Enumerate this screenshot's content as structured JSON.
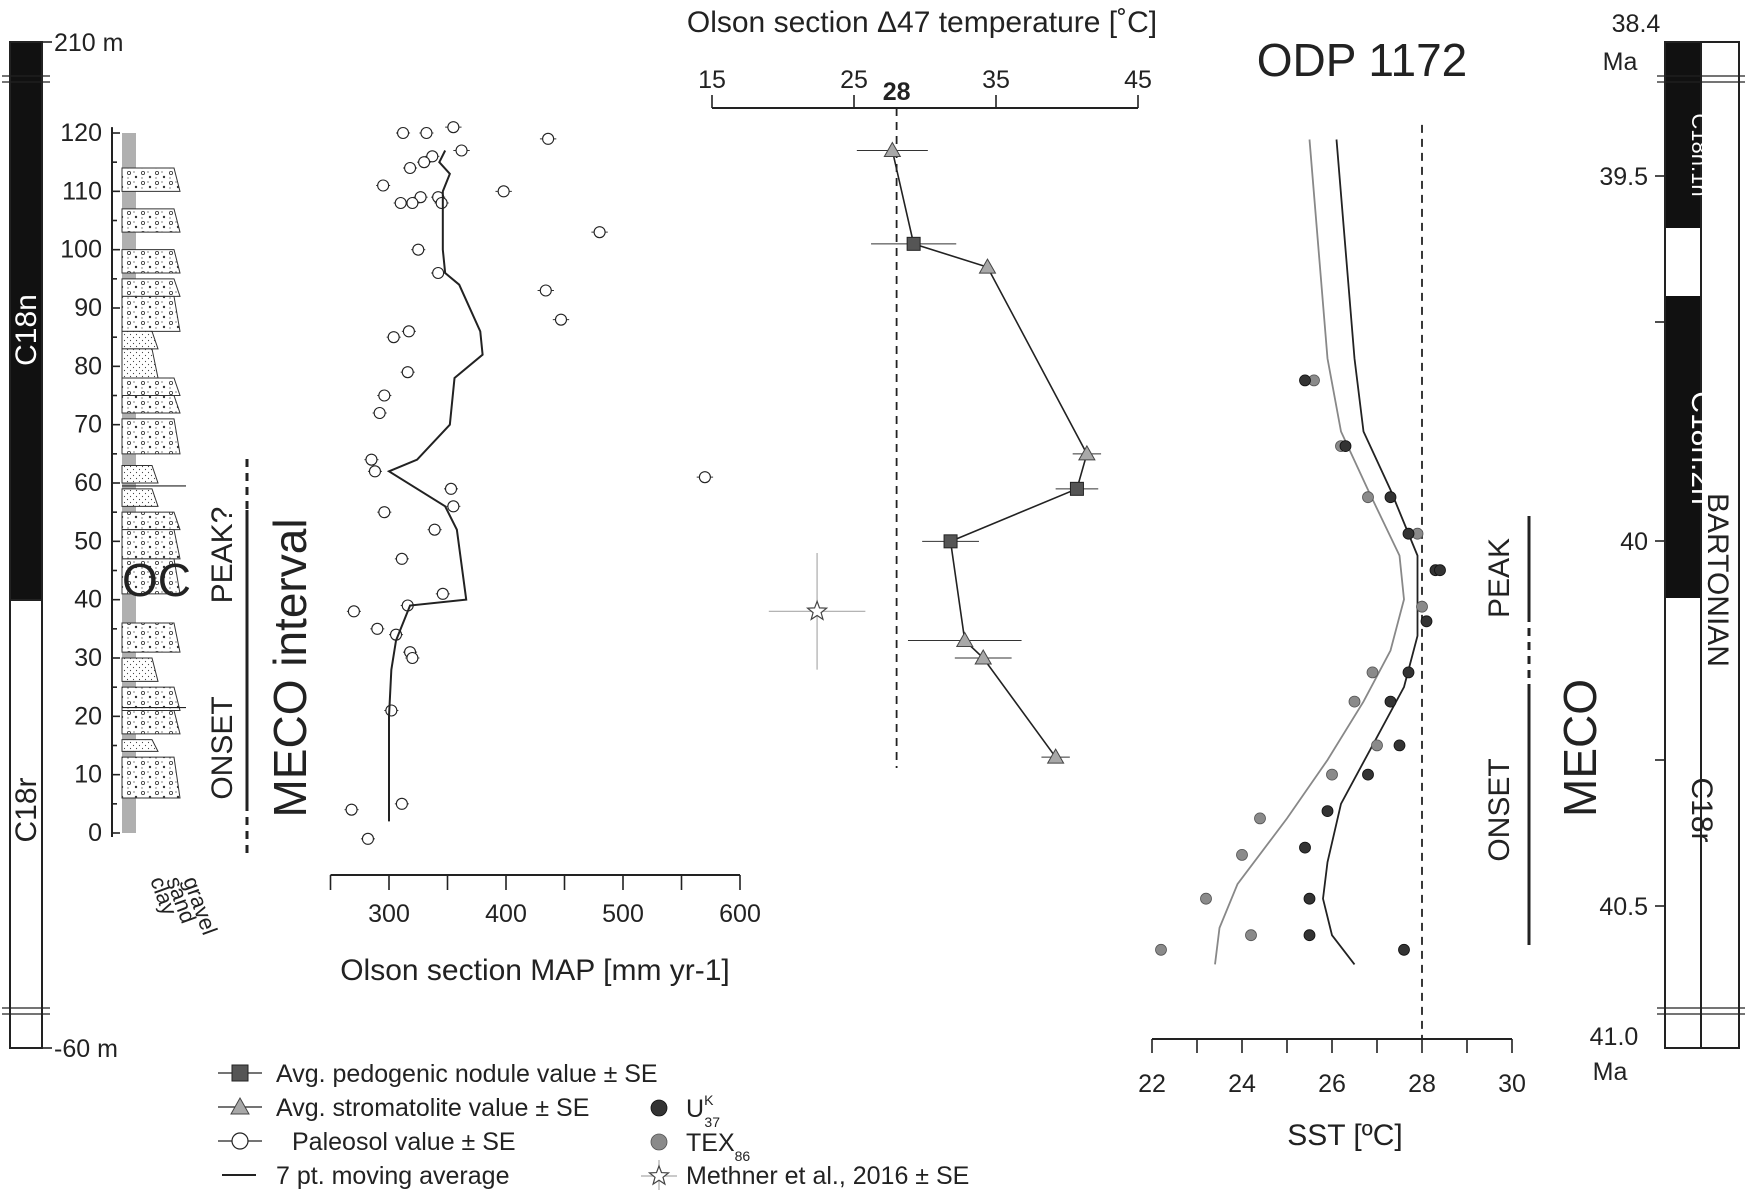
{
  "title": "ODP 1172",
  "top_axis_title": "Olson section Δ47 temperature [˚C]",
  "bottom_left_axis_title": "Olson section MAP [mm yr-1]",
  "sst_axis_title": "SST [ºC]",
  "left_column": {
    "top_label": "210 m",
    "bottom_label": "-60 m",
    "chron_upper": "C18n",
    "chron_lower": "C18r"
  },
  "lithology": {
    "labels": [
      "clay",
      "sand",
      "gravel"
    ],
    "oc_label": "OC"
  },
  "interval_labels": {
    "peak_q": "PEAK?",
    "onset": "ONSET",
    "meco_interval": "MECO interval",
    "peak": "PEAK",
    "onset_right": "ONSET",
    "meco": "MECO"
  },
  "right_column": {
    "top_age": "38.4",
    "top_unit": "Ma",
    "bottom_age": "41.0",
    "bottom_unit": "Ma",
    "chrons": [
      "C18n.1n",
      "C18n.2n",
      "C18r"
    ],
    "stage": "BARTONIAN",
    "age_ticks": [
      "39.5",
      "40",
      "40.5"
    ]
  },
  "legend": {
    "nodule": "Avg. pedogenic nodule value ± SE",
    "stromatolite": "Avg. stromatolite value ± SE",
    "paleosol": "Paleosol value ± SE",
    "moving_avg": "7 pt. moving average",
    "uk37": "U",
    "uk37_sup": "K",
    "uk37_sub": "37",
    "tex86": "TEX",
    "tex86_sub": "86",
    "methner": "Methner et al., 2016 ± SE"
  },
  "colors": {
    "nodule": "#555555",
    "stromatolite": "#a8a8a8",
    "uk37": "#333333",
    "tex86": "#8a8a8a",
    "lithology_column": "#b0b0b0"
  },
  "chart_data": [
    {
      "type": "scatter",
      "name": "Olson section MAP",
      "xlabel": "Olson section MAP [mm yr-1]",
      "ylabel": "",
      "xlim": [
        250,
        600
      ],
      "ylim": [
        0,
        120
      ],
      "x_ticks": [
        300,
        400,
        500,
        600
      ],
      "y_ticks": [
        0,
        10,
        20,
        30,
        40,
        50,
        60,
        70,
        80,
        90,
        100,
        110,
        120
      ],
      "paleosol": [
        {
          "x": 355,
          "y": 121,
          "se": 7
        },
        {
          "x": 312,
          "y": 120,
          "se": 6
        },
        {
          "x": 332,
          "y": 120,
          "se": 6
        },
        {
          "x": 436,
          "y": 119,
          "se": 7
        },
        {
          "x": 362,
          "y": 117,
          "se": 7
        },
        {
          "x": 337,
          "y": 116,
          "se": 6
        },
        {
          "x": 330,
          "y": 115,
          "se": 6
        },
        {
          "x": 318,
          "y": 114,
          "se": 6
        },
        {
          "x": 295,
          "y": 111,
          "se": 6
        },
        {
          "x": 398,
          "y": 110,
          "se": 7
        },
        {
          "x": 342,
          "y": 109,
          "se": 6
        },
        {
          "x": 327,
          "y": 109,
          "se": 6
        },
        {
          "x": 320,
          "y": 108,
          "se": 6
        },
        {
          "x": 310,
          "y": 108,
          "se": 6
        },
        {
          "x": 345,
          "y": 108,
          "se": 6
        },
        {
          "x": 480,
          "y": 103,
          "se": 7
        },
        {
          "x": 325,
          "y": 100,
          "se": 6
        },
        {
          "x": 342,
          "y": 96,
          "se": 6
        },
        {
          "x": 434,
          "y": 93,
          "se": 7
        },
        {
          "x": 447,
          "y": 88,
          "se": 7
        },
        {
          "x": 317,
          "y": 86,
          "se": 6
        },
        {
          "x": 304,
          "y": 85,
          "se": 6
        },
        {
          "x": 316,
          "y": 79,
          "se": 6
        },
        {
          "x": 296,
          "y": 75,
          "se": 6
        },
        {
          "x": 292,
          "y": 72,
          "se": 6
        },
        {
          "x": 285,
          "y": 64,
          "se": 6
        },
        {
          "x": 288,
          "y": 62,
          "se": 6
        },
        {
          "x": 570,
          "y": 61,
          "se": 7
        },
        {
          "x": 353,
          "y": 59,
          "se": 6
        },
        {
          "x": 355,
          "y": 56,
          "se": 6
        },
        {
          "x": 296,
          "y": 55,
          "se": 6
        },
        {
          "x": 339,
          "y": 52,
          "se": 6
        },
        {
          "x": 311,
          "y": 47,
          "se": 6
        },
        {
          "x": 346,
          "y": 41,
          "se": 6
        },
        {
          "x": 316,
          "y": 39,
          "se": 6
        },
        {
          "x": 270,
          "y": 38,
          "se": 6
        },
        {
          "x": 290,
          "y": 35,
          "se": 6
        },
        {
          "x": 306,
          "y": 34,
          "se": 6
        },
        {
          "x": 318,
          "y": 31,
          "se": 6
        },
        {
          "x": 320,
          "y": 30,
          "se": 6
        },
        {
          "x": 302,
          "y": 21,
          "se": 6
        },
        {
          "x": 311,
          "y": 5,
          "se": 6
        },
        {
          "x": 268,
          "y": 4,
          "se": 6
        },
        {
          "x": 282,
          "y": -1,
          "se": 6
        }
      ],
      "moving_average": [
        {
          "x": 348,
          "y": 117
        },
        {
          "x": 343,
          "y": 115
        },
        {
          "x": 352,
          "y": 113
        },
        {
          "x": 346,
          "y": 110
        },
        {
          "x": 346,
          "y": 100
        },
        {
          "x": 348,
          "y": 96
        },
        {
          "x": 360,
          "y": 94
        },
        {
          "x": 378,
          "y": 86
        },
        {
          "x": 380,
          "y": 82
        },
        {
          "x": 356,
          "y": 78
        },
        {
          "x": 352,
          "y": 70
        },
        {
          "x": 324,
          "y": 64
        },
        {
          "x": 300,
          "y": 62
        },
        {
          "x": 348,
          "y": 56
        },
        {
          "x": 358,
          "y": 52
        },
        {
          "x": 362,
          "y": 46
        },
        {
          "x": 366,
          "y": 40
        },
        {
          "x": 318,
          "y": 39
        },
        {
          "x": 306,
          "y": 33
        },
        {
          "x": 302,
          "y": 28
        },
        {
          "x": 300,
          "y": 20
        },
        {
          "x": 300,
          "y": 2
        }
      ]
    },
    {
      "type": "scatter",
      "name": "Olson section Δ47 temperature",
      "xlabel": "Olson section Δ47 temperature [˚C]",
      "xlim": [
        15,
        45
      ],
      "ylim": [
        0,
        120
      ],
      "x_ticks": [
        15,
        25,
        35,
        45
      ],
      "reference_line": 28,
      "nodule": [
        {
          "x": 29.2,
          "y": 101,
          "se": 3.0
        },
        {
          "x": 40.7,
          "y": 59,
          "se": 1.5
        },
        {
          "x": 31.8,
          "y": 50,
          "se": 2.0
        }
      ],
      "stromatolite": [
        {
          "x": 27.7,
          "y": 117,
          "se": 2.5
        },
        {
          "x": 34.4,
          "y": 97,
          "se": 0
        },
        {
          "x": 41.4,
          "y": 65,
          "se": 1.0
        },
        {
          "x": 32.8,
          "y": 33,
          "se": 4.0
        },
        {
          "x": 34.1,
          "y": 30,
          "se": 2.0
        },
        {
          "x": 39.2,
          "y": 13,
          "se": 1.0
        }
      ],
      "trend": [
        {
          "x": 27.7,
          "y": 117
        },
        {
          "x": 29.2,
          "y": 101
        },
        {
          "x": 34.4,
          "y": 97
        },
        {
          "x": 41.4,
          "y": 65
        },
        {
          "x": 40.7,
          "y": 59
        },
        {
          "x": 31.8,
          "y": 50
        },
        {
          "x": 32.8,
          "y": 33
        },
        {
          "x": 34.1,
          "y": 30
        },
        {
          "x": 39.2,
          "y": 13
        }
      ],
      "methner": {
        "x": 22.4,
        "y": 38,
        "xse": 3.4,
        "yse": 10
      }
    },
    {
      "type": "scatter",
      "name": "ODP 1172 SST",
      "xlabel": "SST [ºC]",
      "xlim": [
        22,
        30
      ],
      "ylim": [
        40.58,
        39.43
      ],
      "x_ticks": [
        22,
        24,
        26,
        28,
        30
      ],
      "reference_line": 28,
      "uk37": [
        {
          "x": 25.4,
          "y": 39.78
        },
        {
          "x": 26.3,
          "y": 39.87
        },
        {
          "x": 27.3,
          "y": 39.94
        },
        {
          "x": 27.7,
          "y": 39.99
        },
        {
          "x": 28.3,
          "y": 40.04
        },
        {
          "x": 28.4,
          "y": 40.04
        },
        {
          "x": 28.1,
          "y": 40.11
        },
        {
          "x": 27.7,
          "y": 40.18
        },
        {
          "x": 27.3,
          "y": 40.22
        },
        {
          "x": 27.5,
          "y": 40.28
        },
        {
          "x": 26.8,
          "y": 40.32
        },
        {
          "x": 25.9,
          "y": 40.37
        },
        {
          "x": 25.4,
          "y": 40.42
        },
        {
          "x": 25.5,
          "y": 40.49
        },
        {
          "x": 25.5,
          "y": 40.54
        },
        {
          "x": 27.6,
          "y": 40.56
        }
      ],
      "tex86": [
        {
          "x": 25.6,
          "y": 39.78
        },
        {
          "x": 26.2,
          "y": 39.87
        },
        {
          "x": 26.8,
          "y": 39.94
        },
        {
          "x": 27.9,
          "y": 39.99
        },
        {
          "x": 28.0,
          "y": 40.09
        },
        {
          "x": 26.9,
          "y": 40.18
        },
        {
          "x": 26.5,
          "y": 40.22
        },
        {
          "x": 27.0,
          "y": 40.28
        },
        {
          "x": 26.0,
          "y": 40.32
        },
        {
          "x": 24.4,
          "y": 40.38
        },
        {
          "x": 24.0,
          "y": 40.43
        },
        {
          "x": 23.2,
          "y": 40.49
        },
        {
          "x": 24.2,
          "y": 40.54
        },
        {
          "x": 22.2,
          "y": 40.56
        }
      ],
      "uk37_curve": [
        {
          "x": 26.1,
          "y": 39.45
        },
        {
          "x": 26.3,
          "y": 39.6
        },
        {
          "x": 26.5,
          "y": 39.75
        },
        {
          "x": 26.7,
          "y": 39.85
        },
        {
          "x": 27.3,
          "y": 39.93
        },
        {
          "x": 27.9,
          "y": 40.02
        },
        {
          "x": 27.9,
          "y": 40.13
        },
        {
          "x": 27.6,
          "y": 40.2
        },
        {
          "x": 26.9,
          "y": 40.28
        },
        {
          "x": 26.2,
          "y": 40.36
        },
        {
          "x": 25.9,
          "y": 40.44
        },
        {
          "x": 25.8,
          "y": 40.49
        },
        {
          "x": 26.0,
          "y": 40.54
        },
        {
          "x": 26.5,
          "y": 40.58
        }
      ],
      "tex86_curve": [
        {
          "x": 25.5,
          "y": 39.45
        },
        {
          "x": 25.7,
          "y": 39.6
        },
        {
          "x": 25.9,
          "y": 39.75
        },
        {
          "x": 26.2,
          "y": 39.85
        },
        {
          "x": 26.8,
          "y": 39.93
        },
        {
          "x": 27.5,
          "y": 40.02
        },
        {
          "x": 27.6,
          "y": 40.08
        },
        {
          "x": 27.3,
          "y": 40.15
        },
        {
          "x": 26.7,
          "y": 40.22
        },
        {
          "x": 25.9,
          "y": 40.3
        },
        {
          "x": 25.0,
          "y": 40.38
        },
        {
          "x": 23.9,
          "y": 40.47
        },
        {
          "x": 23.5,
          "y": 40.53
        },
        {
          "x": 23.4,
          "y": 40.58
        }
      ]
    }
  ]
}
